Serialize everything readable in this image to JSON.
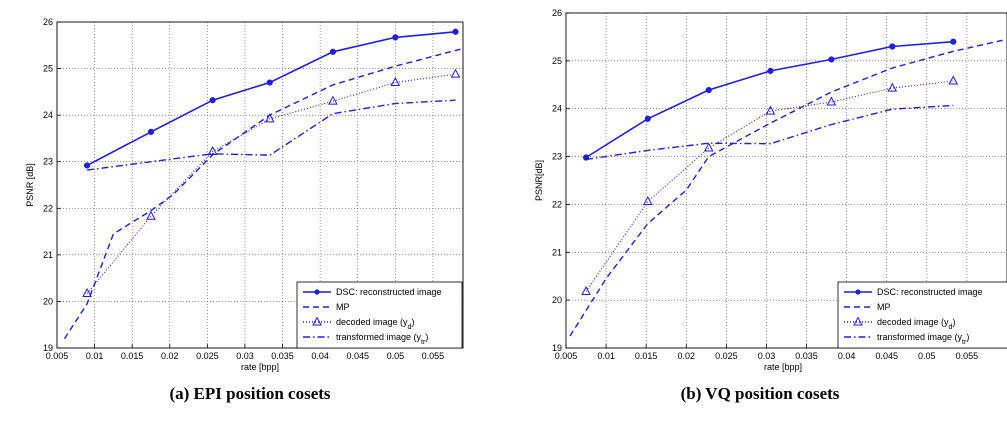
{
  "chart_data": [
    {
      "type": "line",
      "caption": "(a) EPI position cosets",
      "xlabel": "rate [bpp]",
      "ylabel": "PSNR [dB]",
      "xlim": [
        0.005,
        0.059
      ],
      "ylim": [
        19,
        26
      ],
      "xticks": [
        "0.005",
        "0.01",
        "0.015",
        "0.02",
        "0.025",
        "0.03",
        "0.035",
        "0.04",
        "0.045",
        "0.05",
        "0.055"
      ],
      "yticks": [
        "19",
        "20",
        "21",
        "22",
        "23",
        "24",
        "25",
        "26"
      ],
      "grid": true,
      "legend_position": "bottom-right",
      "colors": {
        "line": "#1f1fe0"
      },
      "series": [
        {
          "name": "DSC: reconstructed image",
          "style": "solid-dot",
          "x": [
            0.009,
            0.0175,
            0.0257,
            0.0333,
            0.0417,
            0.05,
            0.058
          ],
          "y": [
            22.92,
            23.64,
            24.32,
            24.7,
            25.36,
            25.67,
            25.79
          ]
        },
        {
          "name": "MP",
          "style": "dashed",
          "x": [
            0.006,
            0.009,
            0.0125,
            0.0175,
            0.0205,
            0.0257,
            0.0333,
            0.0417,
            0.05,
            0.059
          ],
          "y": [
            19.2,
            19.95,
            21.45,
            21.95,
            22.3,
            23.15,
            24.0,
            24.65,
            25.05,
            25.43
          ]
        },
        {
          "name": "decoded image (y_d)",
          "style": "dotted-triangle",
          "x": [
            0.009,
            0.0175,
            0.0257,
            0.0333,
            0.0417,
            0.05,
            0.058
          ],
          "y": [
            20.17,
            21.83,
            23.22,
            23.92,
            24.3,
            24.7,
            24.88
          ]
        },
        {
          "name": "transformed image (y_tr)",
          "style": "dashdot",
          "x": [
            0.009,
            0.0175,
            0.0257,
            0.0333,
            0.0417,
            0.05,
            0.058
          ],
          "y": [
            22.82,
            23.0,
            23.17,
            23.14,
            24.03,
            24.25,
            24.32
          ]
        }
      ]
    },
    {
      "type": "line",
      "caption": "(b) VQ position cosets",
      "xlabel": "rate [bpp]",
      "ylabel": "PSNR[dB]",
      "xlim": [
        0.005,
        0.06
      ],
      "ylim": [
        19,
        26
      ],
      "xticks": [
        "0.005",
        "0.01",
        "0.015",
        "0.02",
        "0.025",
        "0.03",
        "0.035",
        "0.04",
        "0.045",
        "0.05",
        "0.055"
      ],
      "yticks": [
        "19",
        "20",
        "21",
        "22",
        "23",
        "24",
        "25",
        "26"
      ],
      "grid": true,
      "legend_position": "bottom-right",
      "colors": {
        "line": "#1f1fe0"
      },
      "series": [
        {
          "name": "DSC: reconstructed image",
          "style": "solid-dot",
          "x": [
            0.0075,
            0.0152,
            0.0228,
            0.0305,
            0.0381,
            0.0457,
            0.0533
          ],
          "y": [
            22.98,
            23.79,
            24.39,
            24.79,
            25.03,
            25.3,
            25.4
          ]
        },
        {
          "name": "MP",
          "style": "dashed",
          "x": [
            0.0055,
            0.01,
            0.0152,
            0.02,
            0.0228,
            0.0305,
            0.0381,
            0.0457,
            0.0533,
            0.06
          ],
          "y": [
            19.25,
            20.45,
            21.6,
            22.3,
            23.0,
            23.7,
            24.35,
            24.85,
            25.2,
            25.45
          ]
        },
        {
          "name": "decoded image (y_d)",
          "style": "dotted-triangle",
          "x": [
            0.0075,
            0.0152,
            0.0228,
            0.0305,
            0.0381,
            0.0457,
            0.0533
          ],
          "y": [
            20.18,
            22.06,
            23.18,
            23.95,
            24.14,
            24.43,
            24.58
          ]
        },
        {
          "name": "transformed image (y_tr)",
          "style": "dashdot",
          "x": [
            0.0075,
            0.0152,
            0.0228,
            0.0305,
            0.0381,
            0.0457,
            0.0533
          ],
          "y": [
            22.94,
            23.13,
            23.28,
            23.27,
            23.67,
            23.99,
            24.07
          ]
        }
      ]
    }
  ]
}
